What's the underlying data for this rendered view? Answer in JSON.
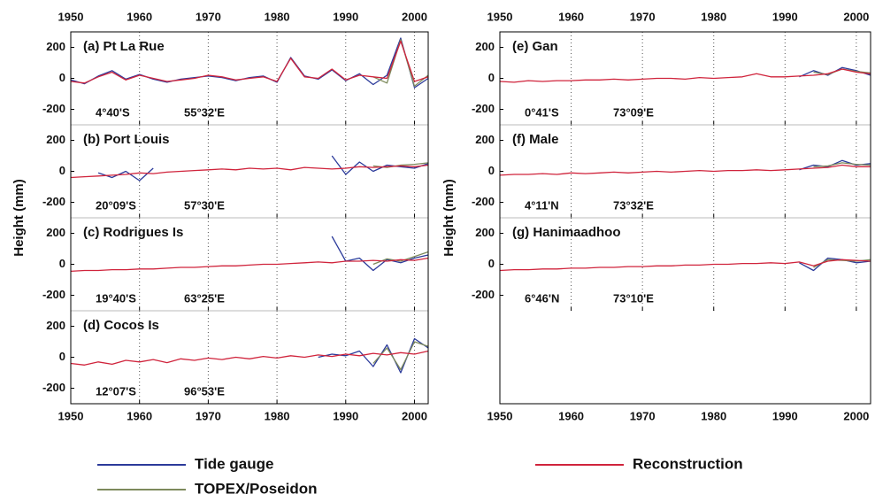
{
  "chart_data": [
    {
      "type": "line",
      "title": "(a) Pt La Rue",
      "latitude": "4°40'S",
      "longitude": "55°32'E",
      "x": [
        1950,
        1952,
        1954,
        1956,
        1958,
        1960,
        1962,
        1964,
        1966,
        1968,
        1970,
        1972,
        1974,
        1976,
        1978,
        1980,
        1982,
        1984,
        1986,
        1988,
        1990,
        1992,
        1994,
        1996,
        1998,
        2000,
        2002
      ],
      "series": [
        {
          "name": "Tide gauge",
          "color": "#2b3a9a",
          "values": [
            -10,
            -35,
            15,
            50,
            -5,
            25,
            -5,
            -25,
            -5,
            5,
            15,
            5,
            -15,
            5,
            15,
            -25,
            135,
            15,
            -5,
            55,
            -15,
            30,
            -40,
            20,
            260,
            -60,
            0
          ]
        },
        {
          "name": "TOPEX/Poseidon",
          "color": "#7d8a5c",
          "values": [
            null,
            null,
            null,
            null,
            null,
            null,
            null,
            null,
            null,
            null,
            null,
            null,
            null,
            null,
            null,
            null,
            null,
            null,
            null,
            null,
            null,
            null,
            10,
            -30,
            250,
            -50,
            20
          ]
        },
        {
          "name": "Reconstruction",
          "color": "#d0243c",
          "values": [
            -20,
            -30,
            10,
            40,
            -10,
            20,
            0,
            -20,
            -10,
            0,
            20,
            10,
            -10,
            0,
            10,
            -20,
            130,
            10,
            0,
            60,
            -10,
            20,
            10,
            0,
            240,
            -20,
            10
          ]
        }
      ],
      "xlim": [
        1950,
        2002
      ],
      "xticks": [
        1950,
        1960,
        1970,
        1980,
        1990,
        2000
      ],
      "ylim": [
        -300,
        300
      ],
      "yticks": [
        -200,
        0,
        200
      ],
      "grid": true
    },
    {
      "type": "line",
      "title": "(b) Port Louis",
      "latitude": "20°09'S",
      "longitude": "57°30'E",
      "ylabel": "Height (mm)",
      "x": [
        1950,
        1952,
        1954,
        1956,
        1958,
        1960,
        1962,
        1964,
        1966,
        1968,
        1970,
        1972,
        1974,
        1976,
        1978,
        1980,
        1982,
        1984,
        1986,
        1988,
        1990,
        1992,
        1994,
        1996,
        1998,
        2000,
        2002
      ],
      "series": [
        {
          "name": "Tide gauge",
          "color": "#2b3a9a",
          "values": [
            null,
            null,
            -10,
            -40,
            0,
            -60,
            20,
            null,
            null,
            null,
            null,
            null,
            null,
            null,
            null,
            null,
            null,
            null,
            null,
            100,
            -20,
            60,
            0,
            40,
            30,
            20,
            50
          ]
        },
        {
          "name": "TOPEX/Poseidon",
          "color": "#7d8a5c",
          "values": [
            null,
            null,
            null,
            null,
            null,
            null,
            null,
            null,
            null,
            null,
            null,
            null,
            null,
            null,
            null,
            null,
            null,
            null,
            null,
            null,
            null,
            null,
            35,
            25,
            40,
            45,
            55
          ]
        },
        {
          "name": "Reconstruction",
          "color": "#d0243c",
          "values": [
            -40,
            -35,
            -30,
            -25,
            -20,
            -10,
            -15,
            -5,
            0,
            5,
            10,
            15,
            10,
            20,
            15,
            20,
            10,
            25,
            20,
            15,
            20,
            30,
            25,
            30,
            35,
            30,
            40
          ]
        }
      ],
      "xlim": [
        1950,
        2002
      ],
      "xticks": [
        1950,
        1960,
        1970,
        1980,
        1990,
        2000
      ],
      "ylim": [
        -300,
        300
      ],
      "yticks": [
        -200,
        0,
        200
      ],
      "grid": true
    },
    {
      "type": "line",
      "title": "(c) Rodrigues Is",
      "latitude": "19°40'S",
      "longitude": "63°25'E",
      "x": [
        1950,
        1952,
        1954,
        1956,
        1958,
        1960,
        1962,
        1964,
        1966,
        1968,
        1970,
        1972,
        1974,
        1976,
        1978,
        1980,
        1982,
        1984,
        1986,
        1988,
        1990,
        1992,
        1994,
        1996,
        1998,
        2000,
        2002
      ],
      "series": [
        {
          "name": "Tide gauge",
          "color": "#2b3a9a",
          "values": [
            null,
            null,
            null,
            null,
            null,
            null,
            null,
            null,
            null,
            null,
            null,
            null,
            null,
            null,
            null,
            null,
            null,
            null,
            null,
            180,
            20,
            40,
            -40,
            30,
            10,
            40,
            60
          ]
        },
        {
          "name": "TOPEX/Poseidon",
          "color": "#7d8a5c",
          "values": [
            null,
            null,
            null,
            null,
            null,
            null,
            null,
            null,
            null,
            null,
            null,
            null,
            null,
            null,
            null,
            null,
            null,
            null,
            null,
            null,
            null,
            null,
            0,
            35,
            20,
            50,
            80
          ]
        },
        {
          "name": "Reconstruction",
          "color": "#d0243c",
          "values": [
            -45,
            -40,
            -40,
            -35,
            -35,
            -30,
            -30,
            -25,
            -20,
            -20,
            -15,
            -10,
            -10,
            -5,
            0,
            0,
            5,
            10,
            15,
            10,
            20,
            20,
            25,
            20,
            30,
            25,
            40
          ]
        }
      ],
      "xlim": [
        1950,
        2002
      ],
      "xticks": [
        1950,
        1960,
        1970,
        1980,
        1990,
        2000
      ],
      "ylim": [
        -300,
        300
      ],
      "yticks": [
        -200,
        0,
        200
      ],
      "grid": true
    },
    {
      "type": "line",
      "title": "(d) Cocos Is",
      "latitude": "12°07'S",
      "longitude": "96°53'E",
      "x": [
        1950,
        1952,
        1954,
        1956,
        1958,
        1960,
        1962,
        1964,
        1966,
        1968,
        1970,
        1972,
        1974,
        1976,
        1978,
        1980,
        1982,
        1984,
        1986,
        1988,
        1990,
        1992,
        1994,
        1996,
        1998,
        2000,
        2002
      ],
      "series": [
        {
          "name": "Tide gauge",
          "color": "#2b3a9a",
          "values": [
            null,
            null,
            null,
            null,
            null,
            null,
            null,
            null,
            null,
            null,
            null,
            null,
            null,
            null,
            null,
            null,
            null,
            null,
            0,
            20,
            10,
            40,
            -60,
            80,
            -100,
            120,
            60
          ]
        },
        {
          "name": "TOPEX/Poseidon",
          "color": "#7d8a5c",
          "values": [
            null,
            null,
            null,
            null,
            null,
            null,
            null,
            null,
            null,
            null,
            null,
            null,
            null,
            null,
            null,
            null,
            null,
            null,
            null,
            null,
            null,
            null,
            -40,
            60,
            -80,
            100,
            70
          ]
        },
        {
          "name": "Reconstruction",
          "color": "#d0243c",
          "values": [
            -40,
            -50,
            -30,
            -45,
            -20,
            -30,
            -15,
            -35,
            -10,
            -20,
            -5,
            -15,
            0,
            -10,
            5,
            -5,
            10,
            0,
            15,
            5,
            20,
            10,
            25,
            15,
            30,
            20,
            40
          ]
        }
      ],
      "xlim": [
        1950,
        2002
      ],
      "xticks": [
        1950,
        1960,
        1970,
        1980,
        1990,
        2000
      ],
      "ylim": [
        -300,
        300
      ],
      "yticks": [
        -200,
        0,
        200
      ],
      "grid": true
    },
    {
      "type": "line",
      "title": "(e) Gan",
      "latitude": "0°41'S",
      "longitude": "73°09'E",
      "x": [
        1950,
        1952,
        1954,
        1956,
        1958,
        1960,
        1962,
        1964,
        1966,
        1968,
        1970,
        1972,
        1974,
        1976,
        1978,
        1980,
        1982,
        1984,
        1986,
        1988,
        1990,
        1992,
        1994,
        1996,
        1998,
        2000,
        2002
      ],
      "series": [
        {
          "name": "Tide gauge",
          "color": "#2b3a9a",
          "values": [
            null,
            null,
            null,
            null,
            null,
            null,
            null,
            null,
            null,
            null,
            null,
            null,
            null,
            null,
            null,
            null,
            null,
            null,
            null,
            null,
            null,
            10,
            50,
            20,
            70,
            50,
            20
          ]
        },
        {
          "name": "TOPEX/Poseidon",
          "color": "#7d8a5c",
          "values": [
            null,
            null,
            null,
            null,
            null,
            null,
            null,
            null,
            null,
            null,
            null,
            null,
            null,
            null,
            null,
            null,
            null,
            null,
            null,
            null,
            null,
            null,
            40,
            25,
            60,
            45,
            35
          ]
        },
        {
          "name": "Reconstruction",
          "color": "#d0243c",
          "values": [
            -20,
            -25,
            -15,
            -20,
            -15,
            -15,
            -10,
            -10,
            -5,
            -10,
            -5,
            0,
            0,
            -5,
            5,
            0,
            5,
            10,
            30,
            10,
            10,
            15,
            20,
            30,
            60,
            40,
            30
          ]
        }
      ],
      "xlim": [
        1950,
        2002
      ],
      "xticks": [
        1950,
        1960,
        1970,
        1980,
        1990,
        2000
      ],
      "ylim": [
        -300,
        300
      ],
      "yticks": [
        -200,
        0,
        200
      ],
      "grid": true
    },
    {
      "type": "line",
      "title": "(f) Male",
      "latitude": "4°11'N",
      "longitude": "73°32'E",
      "ylabel": "Height (mm)",
      "x": [
        1950,
        1952,
        1954,
        1956,
        1958,
        1960,
        1962,
        1964,
        1966,
        1968,
        1970,
        1972,
        1974,
        1976,
        1978,
        1980,
        1982,
        1984,
        1986,
        1988,
        1990,
        1992,
        1994,
        1996,
        1998,
        2000,
        2002
      ],
      "series": [
        {
          "name": "Tide gauge",
          "color": "#2b3a9a",
          "values": [
            null,
            null,
            null,
            null,
            null,
            null,
            null,
            null,
            null,
            null,
            null,
            null,
            null,
            null,
            null,
            null,
            null,
            null,
            null,
            null,
            null,
            10,
            40,
            30,
            70,
            40,
            50
          ]
        },
        {
          "name": "TOPEX/Poseidon",
          "color": "#7d8a5c",
          "values": [
            null,
            null,
            null,
            null,
            null,
            null,
            null,
            null,
            null,
            null,
            null,
            null,
            null,
            null,
            null,
            null,
            null,
            null,
            null,
            null,
            null,
            null,
            30,
            35,
            55,
            45,
            40
          ]
        },
        {
          "name": "Reconstruction",
          "color": "#d0243c",
          "values": [
            -25,
            -20,
            -20,
            -15,
            -20,
            -10,
            -15,
            -10,
            -5,
            -10,
            -5,
            0,
            -5,
            0,
            5,
            0,
            5,
            5,
            10,
            5,
            10,
            15,
            20,
            25,
            40,
            30,
            30
          ]
        }
      ],
      "xlim": [
        1950,
        2002
      ],
      "xticks": [
        1950,
        1960,
        1970,
        1980,
        1990,
        2000
      ],
      "ylim": [
        -300,
        300
      ],
      "yticks": [
        -200,
        0,
        200
      ],
      "grid": true
    },
    {
      "type": "line",
      "title": "(g) Hanimaadhoo",
      "latitude": "6°46'N",
      "longitude": "73°10'E",
      "x": [
        1950,
        1952,
        1954,
        1956,
        1958,
        1960,
        1962,
        1964,
        1966,
        1968,
        1970,
        1972,
        1974,
        1976,
        1978,
        1980,
        1982,
        1984,
        1986,
        1988,
        1990,
        1992,
        1994,
        1996,
        1998,
        2000,
        2002
      ],
      "series": [
        {
          "name": "Tide gauge",
          "color": "#2b3a9a",
          "values": [
            null,
            null,
            null,
            null,
            null,
            null,
            null,
            null,
            null,
            null,
            null,
            null,
            null,
            null,
            null,
            null,
            null,
            null,
            null,
            null,
            null,
            10,
            -40,
            40,
            30,
            10,
            20
          ]
        },
        {
          "name": "TOPEX/Poseidon",
          "color": "#7d8a5c",
          "values": [
            null,
            null,
            null,
            null,
            null,
            null,
            null,
            null,
            null,
            null,
            null,
            null,
            null,
            null,
            null,
            null,
            null,
            null,
            null,
            null,
            null,
            null,
            -20,
            30,
            25,
            20,
            30
          ]
        },
        {
          "name": "Reconstruction",
          "color": "#d0243c",
          "values": [
            -40,
            -35,
            -35,
            -30,
            -30,
            -25,
            -25,
            -20,
            -20,
            -15,
            -15,
            -10,
            -10,
            -5,
            -5,
            0,
            0,
            5,
            5,
            10,
            5,
            15,
            -10,
            20,
            30,
            25,
            20
          ]
        }
      ],
      "xlim": [
        1950,
        2002
      ],
      "xticks": [
        1950,
        1960,
        1970,
        1980,
        1990,
        2000
      ],
      "ylim": [
        -300,
        300
      ],
      "yticks": [
        -200,
        0,
        200
      ],
      "grid": true
    }
  ]
}
